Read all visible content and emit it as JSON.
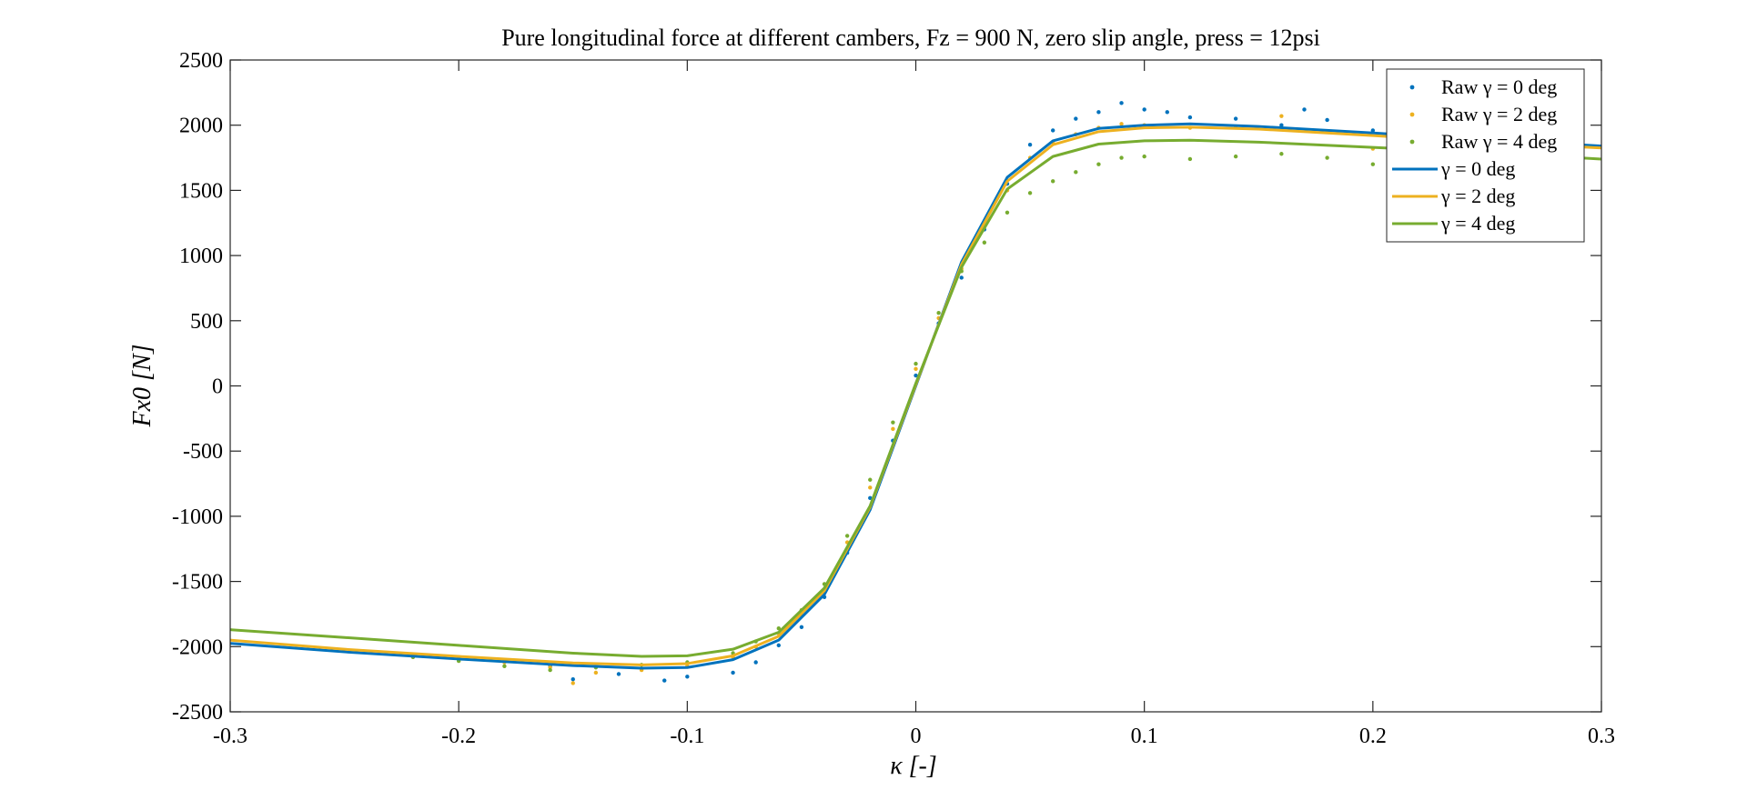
{
  "chart_data": {
    "type": "scatter",
    "title": "Pure longitudinal force at different cambers, Fz = 900 N, zero slip angle, press = 12psi",
    "xlabel": "κ [-]",
    "ylabel": "Fx0 [N]",
    "xlim": [
      -0.3,
      0.3
    ],
    "ylim": [
      -2500,
      2500
    ],
    "xticks": [
      -0.3,
      -0.2,
      -0.1,
      0,
      0.1,
      0.2,
      0.3
    ],
    "xtick_labels": [
      "-0.3",
      "-0.2",
      "-0.1",
      "0",
      "0.1",
      "0.2",
      "0.3"
    ],
    "yticks": [
      2500,
      2000,
      1500,
      1000,
      500,
      0,
      -500,
      -1000,
      -1500,
      -2000,
      -2500
    ],
    "ytick_labels": [
      "2500",
      "2000",
      "1500",
      "1000",
      "500",
      "0",
      "-500",
      "-1000",
      "-1500",
      "-2000",
      "-2500"
    ],
    "grid": false,
    "legend_position": "top-right",
    "colors": {
      "gamma0": "#0072BD",
      "gamma2": "#EDB120",
      "gamma4": "#77AC30"
    },
    "series": [
      {
        "name": "Raw γ = 0 deg",
        "style": "points",
        "color": "#0072BD",
        "x": [
          -0.22,
          -0.2,
          -0.18,
          -0.16,
          -0.15,
          -0.13,
          -0.11,
          -0.1,
          -0.08,
          -0.07,
          -0.06,
          -0.05,
          -0.04,
          -0.03,
          -0.02,
          -0.01,
          0,
          0.01,
          0.02,
          0.03,
          0.04,
          0.05,
          0.06,
          0.07,
          0.08,
          0.09,
          0.1,
          0.11,
          0.12,
          0.14,
          0.16,
          0.17,
          0.18,
          0.2,
          0.22
        ],
        "y": [
          -2070,
          -2100,
          -2110,
          -2150,
          -2250,
          -2210,
          -2260,
          -2230,
          -2200,
          -2120,
          -1990,
          -1850,
          -1620,
          -1280,
          -860,
          -420,
          80,
          480,
          830,
          1200,
          1550,
          1850,
          1960,
          2050,
          2100,
          2170,
          2120,
          2100,
          2060,
          2050,
          2000,
          2120,
          2040,
          1960,
          1900
        ]
      },
      {
        "name": "Raw γ = 2 deg",
        "style": "points",
        "color": "#EDB120",
        "x": [
          -0.22,
          -0.2,
          -0.18,
          -0.16,
          -0.15,
          -0.14,
          -0.12,
          -0.1,
          -0.08,
          -0.07,
          -0.06,
          -0.05,
          -0.04,
          -0.03,
          -0.02,
          -0.01,
          0,
          0.01,
          0.02,
          0.03,
          0.04,
          0.05,
          0.06,
          0.07,
          0.08,
          0.09,
          0.1,
          0.12,
          0.14,
          0.16,
          0.18,
          0.2
        ],
        "y": [
          -2080,
          -2090,
          -2120,
          -2160,
          -2280,
          -2200,
          -2180,
          -2150,
          -2080,
          -2000,
          -1900,
          -1760,
          -1580,
          -1200,
          -780,
          -330,
          130,
          520,
          900,
          1220,
          1500,
          1750,
          1870,
          1930,
          1980,
          2010,
          2000,
          1980,
          1990,
          2070,
          1950,
          1820
        ]
      },
      {
        "name": "Raw γ = 4 deg",
        "style": "points",
        "color": "#77AC30",
        "x": [
          -0.22,
          -0.2,
          -0.18,
          -0.16,
          -0.14,
          -0.12,
          -0.1,
          -0.08,
          -0.07,
          -0.06,
          -0.05,
          -0.04,
          -0.03,
          -0.02,
          -0.01,
          0,
          0.01,
          0.02,
          0.03,
          0.04,
          0.05,
          0.06,
          0.07,
          0.08,
          0.09,
          0.1,
          0.12,
          0.14,
          0.16,
          0.18,
          0.2
        ],
        "y": [
          -2080,
          -2110,
          -2150,
          -2180,
          -2160,
          -2140,
          -2120,
          -2050,
          -1960,
          -1860,
          -1720,
          -1520,
          -1150,
          -720,
          -280,
          170,
          560,
          880,
          1100,
          1330,
          1480,
          1570,
          1640,
          1700,
          1750,
          1760,
          1740,
          1760,
          1780,
          1750,
          1700
        ]
      },
      {
        "name": "γ = 0 deg",
        "style": "line",
        "color": "#0072BD",
        "x": [
          -0.3,
          -0.25,
          -0.2,
          -0.15,
          -0.12,
          -0.1,
          -0.08,
          -0.06,
          -0.04,
          -0.02,
          0,
          0.02,
          0.04,
          0.06,
          0.08,
          0.1,
          0.12,
          0.15,
          0.2,
          0.25,
          0.3
        ],
        "y": [
          -1975,
          -2040,
          -2095,
          -2145,
          -2165,
          -2160,
          -2100,
          -1950,
          -1600,
          -950,
          0,
          950,
          1600,
          1880,
          1975,
          2000,
          2010,
          1990,
          1940,
          1890,
          1840
        ]
      },
      {
        "name": "γ = 2 deg",
        "style": "line",
        "color": "#EDB120",
        "x": [
          -0.3,
          -0.25,
          -0.2,
          -0.15,
          -0.12,
          -0.1,
          -0.08,
          -0.06,
          -0.04,
          -0.02,
          0,
          0.02,
          0.04,
          0.06,
          0.08,
          0.1,
          0.12,
          0.15,
          0.2,
          0.25,
          0.3
        ],
        "y": [
          -1950,
          -2020,
          -2075,
          -2125,
          -2140,
          -2130,
          -2070,
          -1920,
          -1570,
          -930,
          10,
          930,
          1570,
          1850,
          1950,
          1980,
          1985,
          1970,
          1920,
          1870,
          1825
        ]
      },
      {
        "name": "γ = 4 deg",
        "style": "line",
        "color": "#77AC30",
        "x": [
          -0.3,
          -0.25,
          -0.2,
          -0.15,
          -0.12,
          -0.1,
          -0.08,
          -0.06,
          -0.04,
          -0.02,
          0,
          0.02,
          0.04,
          0.06,
          0.08,
          0.1,
          0.12,
          0.15,
          0.2,
          0.25,
          0.3
        ],
        "y": [
          -1870,
          -1930,
          -1990,
          -2050,
          -2075,
          -2070,
          -2020,
          -1890,
          -1550,
          -920,
          20,
          910,
          1510,
          1760,
          1855,
          1880,
          1885,
          1870,
          1830,
          1790,
          1740
        ]
      }
    ]
  }
}
